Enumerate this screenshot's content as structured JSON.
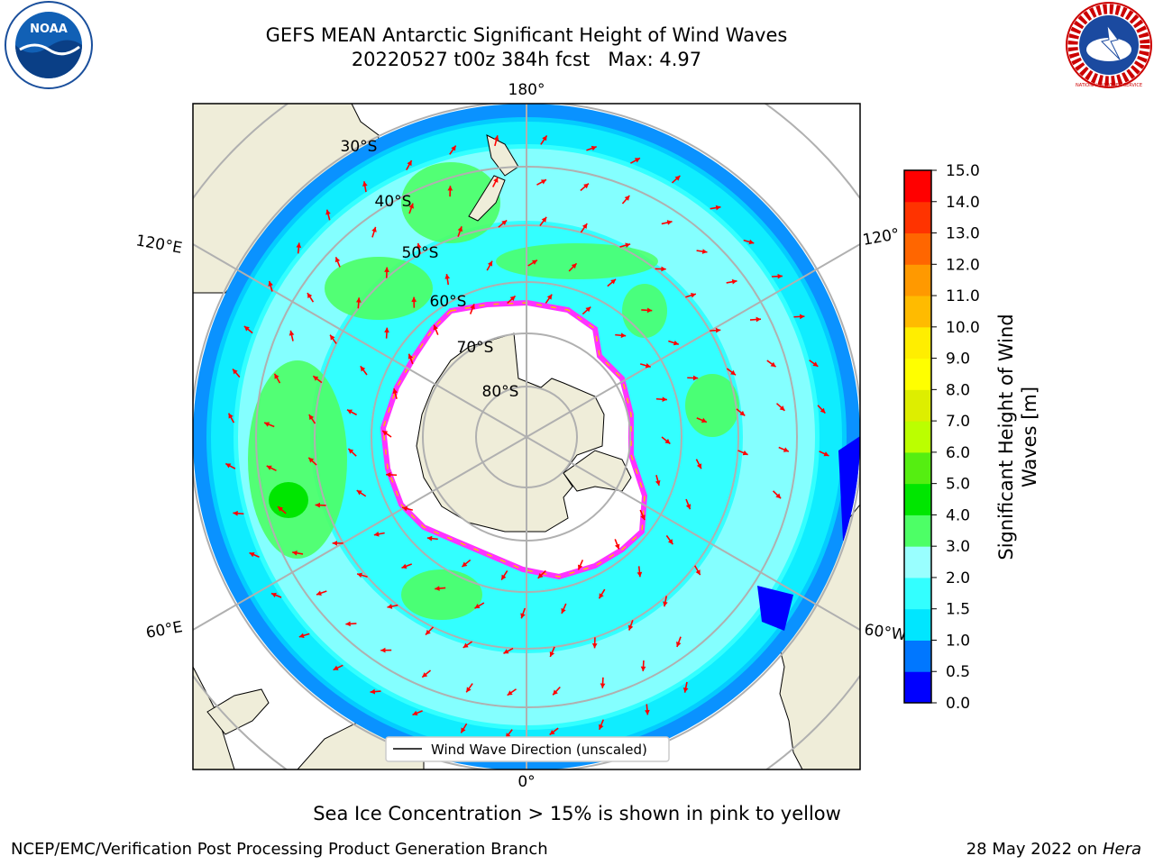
{
  "title": {
    "line1": "GEFS MEAN Antarctic Significant Height of Wind Waves",
    "line2": "20220527 t00z 384h fcst   Max: 4.97"
  },
  "logos": {
    "left": "NOAA",
    "right": "NATIONAL WEATHER SERVICE"
  },
  "map": {
    "projection": "south-polar-stereographic",
    "longitude_labels": [
      "180°",
      "120°E",
      "120°",
      "60°E",
      "60°W",
      "0°"
    ],
    "latitude_labels": [
      "30°S",
      "40°S",
      "50°S",
      "60°S",
      "70°S",
      "80°S"
    ],
    "legend": "Wind Wave Direction (unscaled)",
    "colors": {
      "land": "#efedd9",
      "sea_ice_white": "#ffffff",
      "ice_edge": "#ff33ff",
      "arrows": "#ff0000"
    }
  },
  "colorbar": {
    "label": "Significant Height of Wind Waves [m]",
    "label_line1": "Significant Height of Wind",
    "label_line2": "Waves [m]",
    "ticks": [
      "0.0",
      "0.5",
      "1.0",
      "1.5",
      "2.0",
      "3.0",
      "4.0",
      "5.0",
      "6.0",
      "7.0",
      "8.0",
      "9.0",
      "10.0",
      "11.0",
      "12.0",
      "13.0",
      "14.0",
      "15.0"
    ],
    "colors": [
      "#0000ff",
      "#0077ff",
      "#00e6ff",
      "#33ffff",
      "#99ffff",
      "#4dff66",
      "#00e600",
      "#55ee11",
      "#bbff00",
      "#ddee00",
      "#ffff00",
      "#ffee00",
      "#ffbb00",
      "#ff9900",
      "#ff6600",
      "#ff3300",
      "#ff0000"
    ]
  },
  "notes": {
    "sea_ice": "Sea Ice Concentration > 15% is shown in pink to yellow",
    "footer_left": "NCEP/EMC/Verification Post Processing Product Generation Branch",
    "footer_date": "28 May 2022 on",
    "footer_host": "Hera"
  }
}
